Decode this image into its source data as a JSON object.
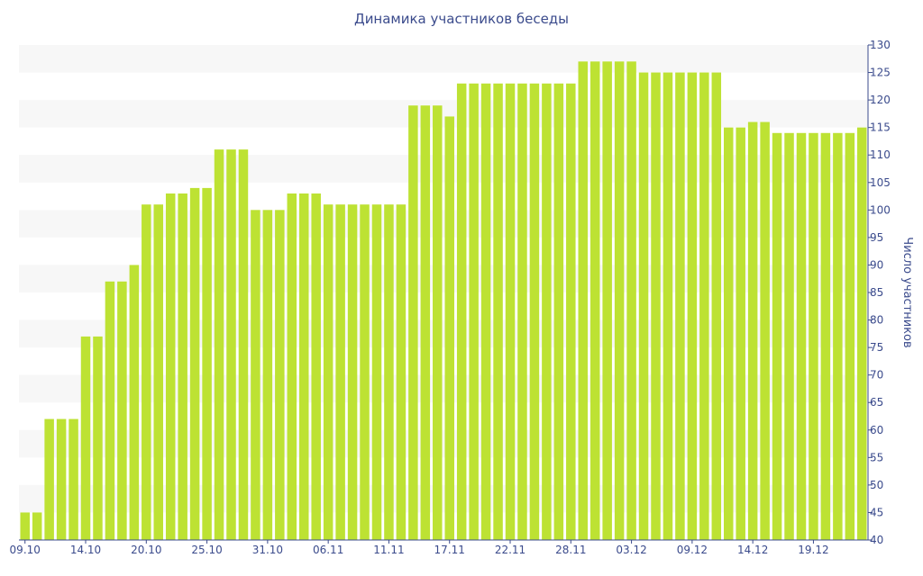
{
  "chart_data": {
    "type": "bar",
    "title": "Динамика участников беседы",
    "xlabel": "",
    "ylabel": "Число участников",
    "ylim": [
      40,
      130
    ],
    "ytick_step": 5,
    "x_tick_labels": [
      "09.10",
      "14.10",
      "20.10",
      "25.10",
      "31.10",
      "06.11",
      "11.11",
      "17.11",
      "22.11",
      "28.11",
      "03.12",
      "09.12",
      "14.12",
      "19.12"
    ],
    "values": [
      45,
      45,
      62,
      62,
      62,
      77,
      77,
      87,
      87,
      90,
      101,
      101,
      103,
      103,
      104,
      104,
      111,
      111,
      111,
      100,
      100,
      100,
      103,
      103,
      103,
      101,
      101,
      101,
      101,
      101,
      101,
      101,
      119,
      119,
      119,
      117,
      123,
      123,
      123,
      123,
      123,
      123,
      123,
      123,
      123,
      123,
      127,
      127,
      127,
      127,
      127,
      125,
      125,
      125,
      125,
      125,
      125,
      125,
      115,
      115,
      116,
      116,
      114,
      114,
      114,
      114,
      114,
      114,
      114,
      115
    ],
    "bar_color": "#bde233",
    "grid": true,
    "band_color": "#f7f7f7",
    "axis_color": "#3b4b8c",
    "y_axis_position": "right"
  }
}
